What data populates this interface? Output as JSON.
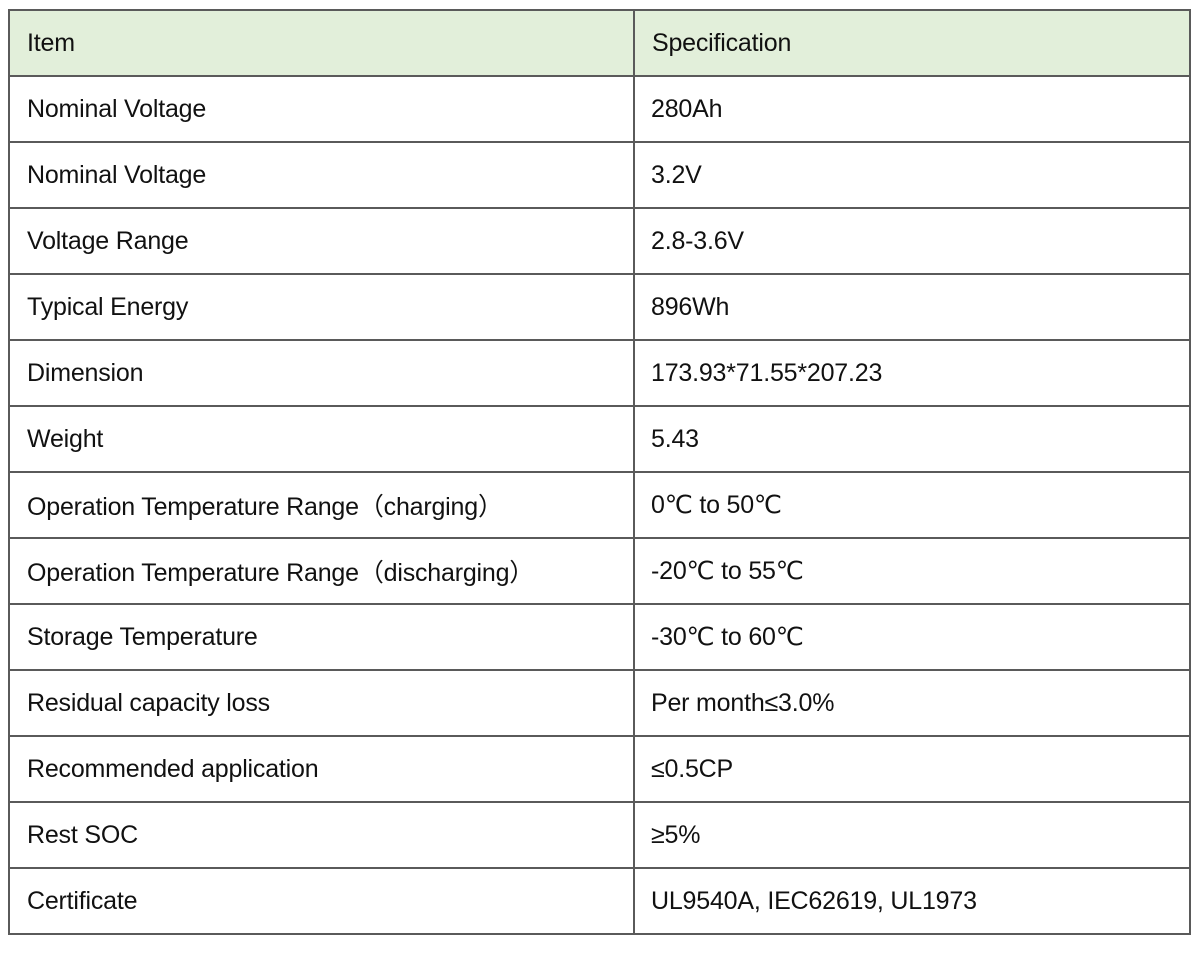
{
  "table": {
    "header_bg": "#E2EFDA",
    "columns": [
      "Item",
      "Specification"
    ],
    "rows": [
      {
        "item": "Nominal Voltage",
        "spec": "280Ah"
      },
      {
        "item": "Nominal Voltage",
        "spec": "3.2V"
      },
      {
        "item": "Voltage Range",
        "spec": "2.8-3.6V"
      },
      {
        "item": "Typical Energy",
        "spec": "896Wh"
      },
      {
        "item": "Dimension",
        "spec": "173.93*71.55*207.23"
      },
      {
        "item": "Weight",
        "spec": "5.43"
      },
      {
        "item": "Operation Temperature Range（charging）",
        "spec": "0℃ to 50℃"
      },
      {
        "item": "Operation Temperature Range（discharging）",
        "spec": "-20℃ to 55℃"
      },
      {
        "item": "Storage Temperature",
        "spec": "-30℃ to 60℃"
      },
      {
        "item": "Residual capacity loss",
        "spec": "Per month≤3.0%"
      },
      {
        "item": "Recommended application",
        "spec": "≤0.5CP"
      },
      {
        "item": "Rest SOC",
        "spec": "≥5%"
      },
      {
        "item": "Certificate",
        "spec": "UL9540A, IEC62619, UL1973"
      }
    ]
  }
}
